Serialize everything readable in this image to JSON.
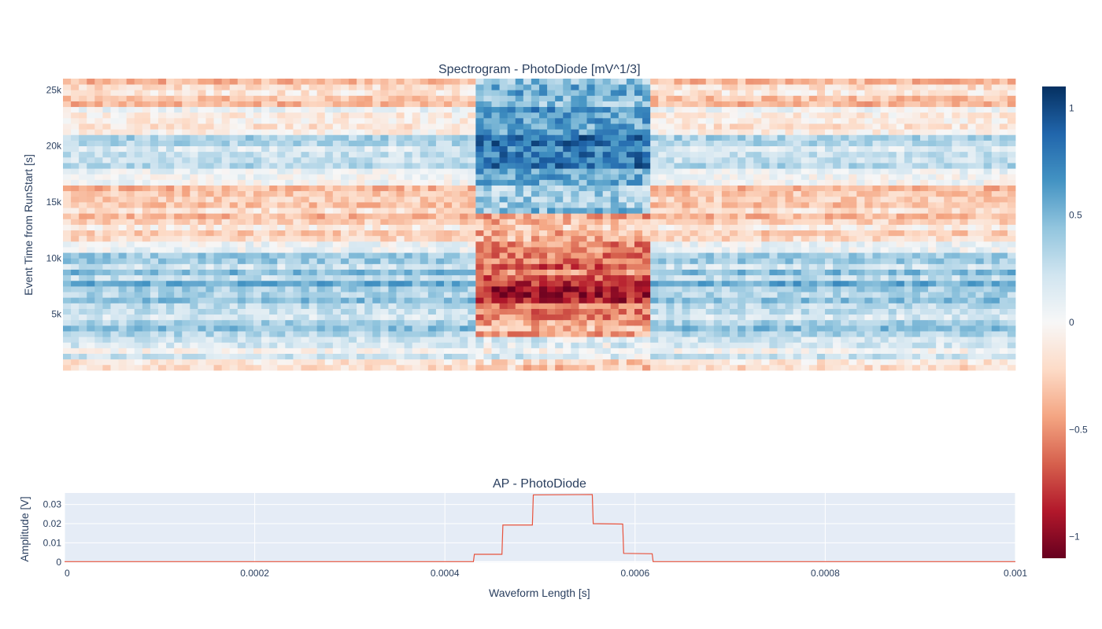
{
  "chart_data": [
    {
      "type": "heatmap",
      "title": "Spectrogram - PhotoDiode [mV^1/3]",
      "ylabel": "Event Time from RunStart [s]",
      "xlabel": "",
      "ylim": [
        0,
        26000
      ],
      "xlim": [
        0,
        0.001
      ],
      "ytick_values": [
        5000,
        10000,
        15000,
        20000,
        25000
      ],
      "ytick_labels": [
        "5k",
        "10k",
        "15k",
        "20k",
        "25k"
      ],
      "columns": 120,
      "rows": 52,
      "pulse_window": [
        0.00043,
        0.00062
      ],
      "colorscale": "RdBu",
      "zlim": [
        -1.1,
        1.1
      ],
      "colorbar_ticks": [
        {
          "value": 1,
          "label": "1"
        },
        {
          "value": 0.5,
          "label": "0.5"
        },
        {
          "value": 0,
          "label": "0"
        },
        {
          "value": -0.5,
          "label": "−0.5"
        },
        {
          "value": -1,
          "label": "−1"
        }
      ],
      "row_profile": [
        {
          "y_from": 0,
          "y_to": 1000,
          "outside": -0.25,
          "inside": -0.3
        },
        {
          "y_from": 1000,
          "y_to": 3000,
          "outside": 0.15,
          "inside": 0.1
        },
        {
          "y_from": 3000,
          "y_to": 5000,
          "outside": 0.3,
          "inside": -0.45
        },
        {
          "y_from": 5000,
          "y_to": 6000,
          "outside": 0.25,
          "inside": -0.55
        },
        {
          "y_from": 6000,
          "y_to": 8000,
          "outside": 0.45,
          "inside": -0.85
        },
        {
          "y_from": 8000,
          "y_to": 10500,
          "outside": 0.35,
          "inside": -0.6
        },
        {
          "y_from": 10500,
          "y_to": 11500,
          "outside": 0.1,
          "inside": -0.5
        },
        {
          "y_from": 11500,
          "y_to": 14000,
          "outside": -0.2,
          "inside": -0.35
        },
        {
          "y_from": 14000,
          "y_to": 16500,
          "outside": -0.25,
          "inside": 0.4
        },
        {
          "y_from": 16500,
          "y_to": 18000,
          "outside": 0.1,
          "inside": 0.6
        },
        {
          "y_from": 18000,
          "y_to": 21000,
          "outside": 0.2,
          "inside": 0.75
        },
        {
          "y_from": 21000,
          "y_to": 23500,
          "outside": 0.0,
          "inside": 0.65
        },
        {
          "y_from": 23500,
          "y_to": 26000,
          "outside": -0.25,
          "inside": 0.5
        }
      ]
    },
    {
      "type": "line",
      "title": "AP - PhotoDiode",
      "xlabel": "Waveform Length [s]",
      "ylabel": "Amplitude [V]",
      "xlim": [
        0,
        0.001
      ],
      "ylim": [
        -0.0005,
        0.036
      ],
      "xtick_values": [
        0,
        0.0002,
        0.0004,
        0.0006,
        0.0008,
        0.001
      ],
      "xtick_labels": [
        "0",
        "0.0002",
        "0.0004",
        "0.0006",
        "0.0008",
        "0.001"
      ],
      "ytick_values": [
        0,
        0.01,
        0.02,
        0.03
      ],
      "ytick_labels": [
        "0",
        "0.01",
        "0.02",
        "0.03"
      ],
      "line_color": "#e8533d",
      "x": [
        0,
        0.00043,
        0.000431,
        0.00046,
        0.000461,
        0.000492,
        0.000493,
        0.000555,
        0.000556,
        0.000587,
        0.000588,
        0.000618,
        0.000619,
        0.001
      ],
      "y": [
        0.0002,
        0.0002,
        0.004,
        0.004,
        0.0193,
        0.0193,
        0.035,
        0.0352,
        0.02,
        0.0198,
        0.0045,
        0.0043,
        0.0002,
        0.0002
      ]
    }
  ]
}
